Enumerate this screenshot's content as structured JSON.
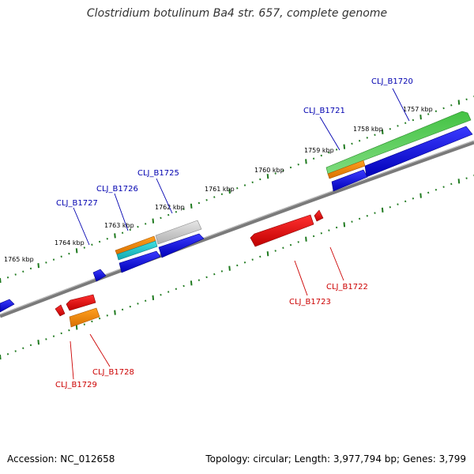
{
  "title": "Clostridium botulinum Ba4 str. 657, complete genome",
  "footer": {
    "accession": "Accession: NC_012658",
    "stats": "Topology: circular; Length: 3,977,794 bp; Genes: 3,799"
  },
  "colors": {
    "forward_label": "#0000b0",
    "reverse_label": "#cc0000",
    "tick": "#1f7a1f",
    "backbone": "#7a7a7a"
  },
  "kbp_labels": [
    "1757 kbp",
    "1758 kbp",
    "1759 kbp",
    "1760 kbp",
    "1761 kbp",
    "1762 kbp",
    "1763 kbp",
    "1764 kbp",
    "1765 kbp"
  ],
  "gene_labels": {
    "forward": [
      "CLJ_B1720",
      "CLJ_B1721",
      "CLJ_B1725",
      "CLJ_B1726",
      "CLJ_B1727"
    ],
    "reverse": [
      "CLJ_B1722",
      "CLJ_B1723",
      "CLJ_B1728",
      "CLJ_B1729"
    ]
  }
}
